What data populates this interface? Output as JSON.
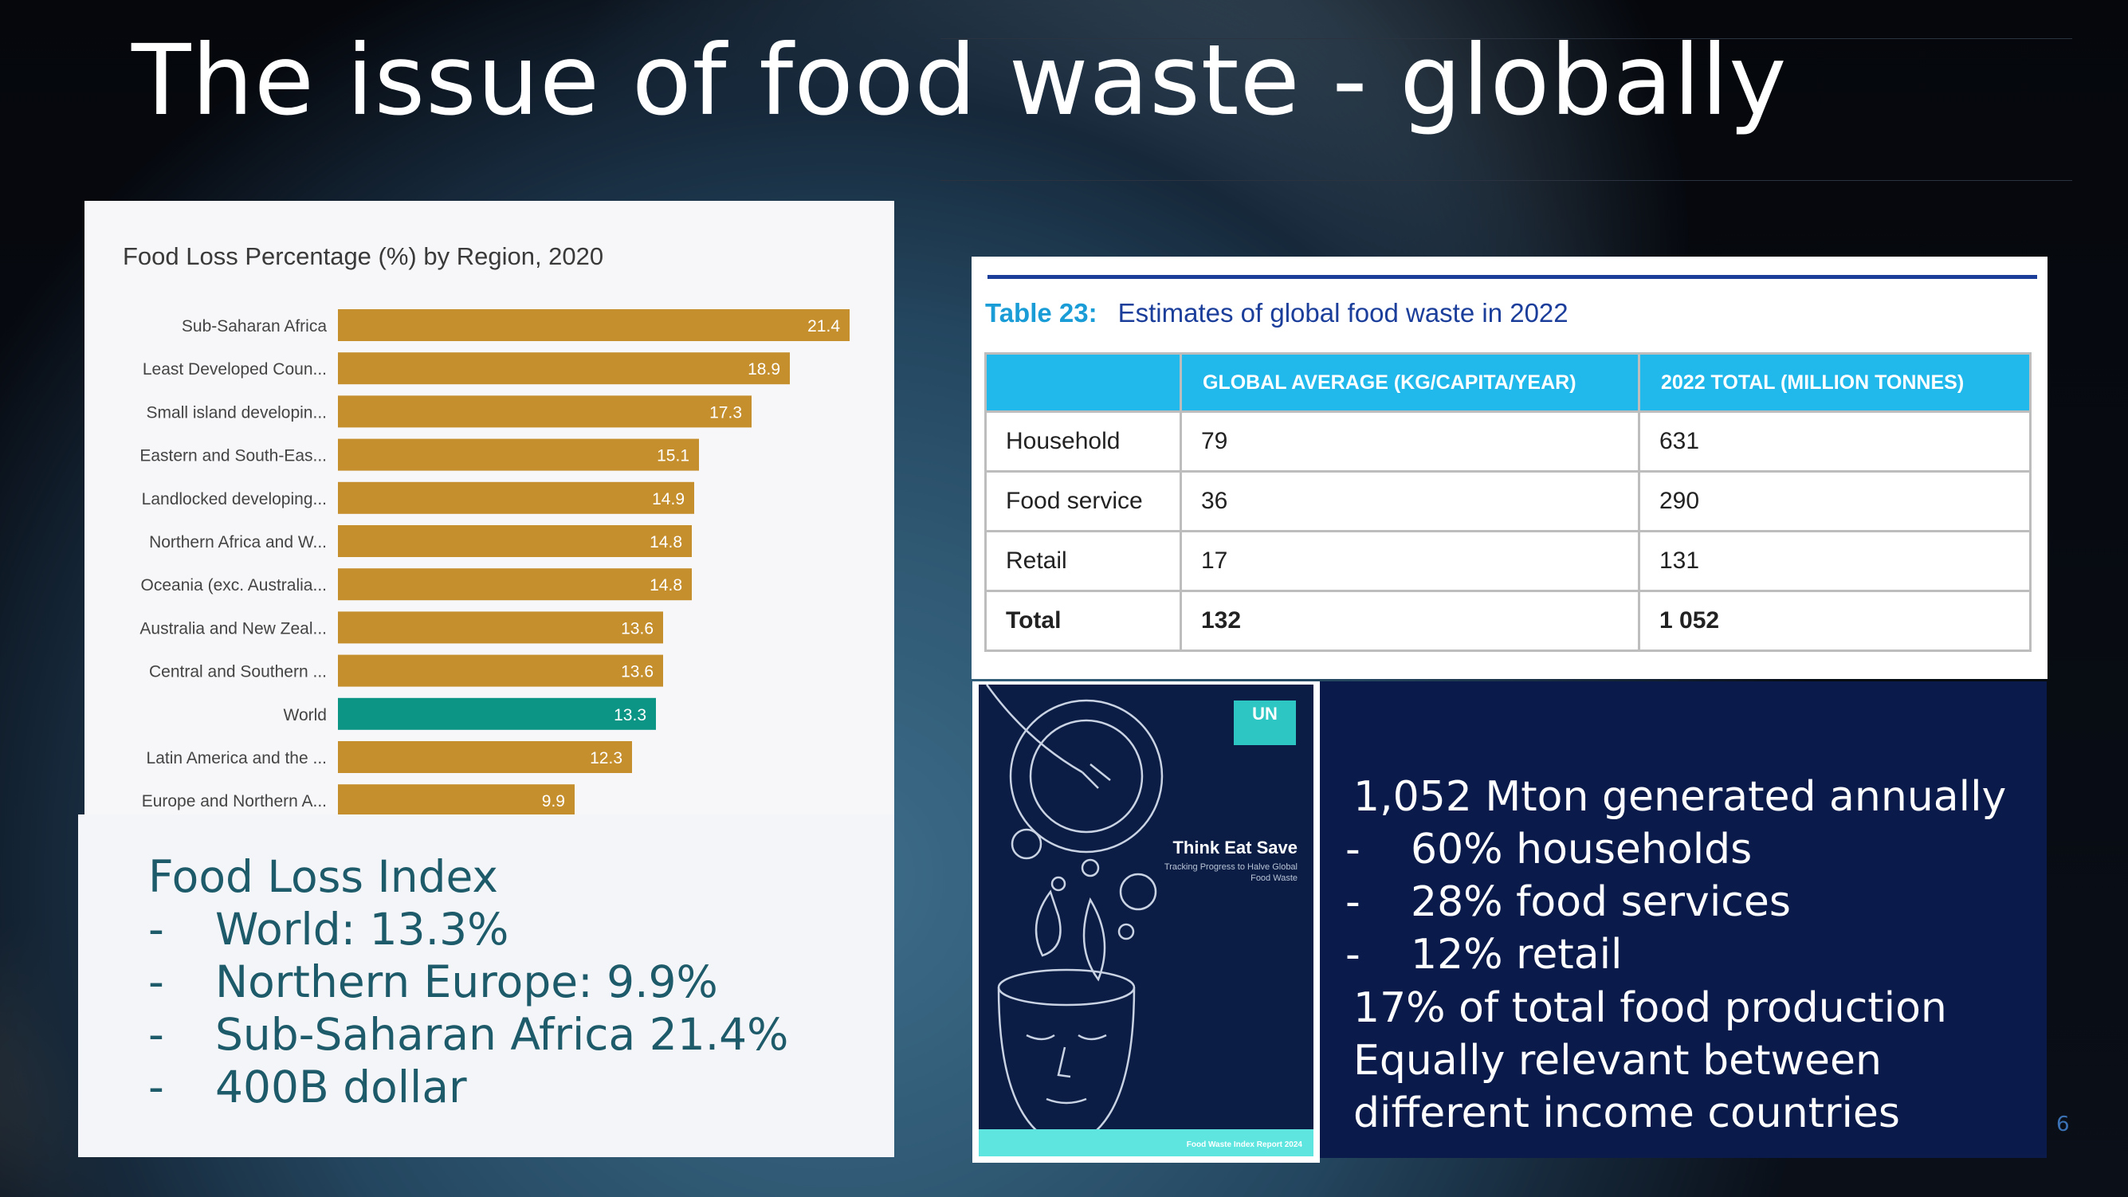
{
  "slide": {
    "title": "The issue of food waste - globally",
    "page_number": "6"
  },
  "chart_data": {
    "type": "bar",
    "orientation": "horizontal",
    "title": "Food Loss Percentage (%) by Region, 2020",
    "xlabel": "",
    "ylabel": "",
    "categories": [
      "Sub-Saharan Africa",
      "Least Developed Coun...",
      "Small island developin...",
      "Eastern and South-Eas...",
      "Landlocked developing...",
      "Northern Africa and W...",
      "Oceania (exc. Australia...",
      "Australia and New Zeal...",
      "Central and Southern ...",
      "World",
      "Latin America and the ...",
      "Europe and Northern A..."
    ],
    "values": [
      21.4,
      18.9,
      17.3,
      15.1,
      14.9,
      14.8,
      14.8,
      13.6,
      13.6,
      13.3,
      12.3,
      9.9
    ],
    "value_labels": [
      "21.4",
      "18.9",
      "17.3",
      "15.1",
      "14.9",
      "14.8",
      "14.8",
      "13.6",
      "13.6",
      "13.3",
      "12.3",
      "9.9"
    ],
    "highlight_category": "World",
    "xlim": [
      0,
      22
    ],
    "grid": false,
    "colors": {
      "bar": "#C58F2E",
      "highlight": "#0C9585"
    }
  },
  "food_loss_index": {
    "heading": "Food Loss Index",
    "items": [
      "World: 13.3%",
      "Northern Europe: 9.9%",
      "Sub-Saharan Africa 21.4%",
      "400B dollar"
    ],
    "bullet": "-"
  },
  "waste_table": {
    "number": "Table 23:",
    "caption": "Estimates of global food waste in 2022",
    "headers": [
      "",
      "GLOBAL AVERAGE (KG/CAPITA/YEAR)",
      "2022 TOTAL (MILLION TONNES)"
    ],
    "rows": [
      [
        "Household",
        "79",
        "631"
      ],
      [
        "Food service",
        "36",
        "290"
      ],
      [
        "Retail",
        "17",
        "131"
      ],
      [
        "Total",
        "132",
        "1 052"
      ]
    ]
  },
  "report_cover": {
    "logo": "UN",
    "title": "Think Eat Save",
    "subtitle": "Tracking Progress to Halve Global Food Waste",
    "footer": "Food Waste Index Report 2024"
  },
  "stats": {
    "headline": "1,052 Mton generated annually",
    "bullet": "-",
    "items": [
      "60% households",
      "28% food services",
      "12% retail"
    ],
    "lines": [
      "17% of total food production",
      "Equally relevant between",
      "different income countries"
    ]
  },
  "colors": {
    "title": "#FFFFFF",
    "index_text": "#1E5B6A",
    "table_header": "#21B8EC",
    "table_caption": "#1B3E9B",
    "stats_panel": "#0A1A4A",
    "page_number": "#3B72B5"
  }
}
